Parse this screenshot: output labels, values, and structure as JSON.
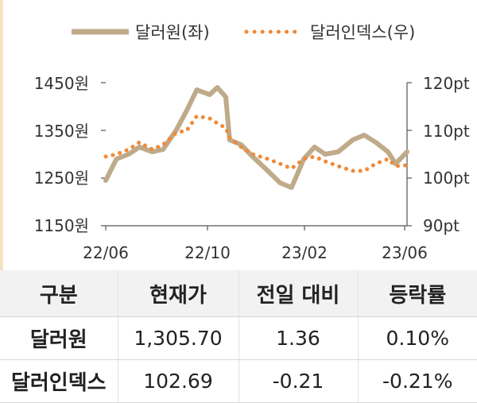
{
  "colors": {
    "krw": "#bfaa8a",
    "dxy": "#f08a38",
    "axis": "#555555",
    "accent": "#f6e3c4"
  },
  "chart_data": {
    "type": "line",
    "x_ticks": [
      "22/06",
      "22/10",
      "23/02",
      "23/06"
    ],
    "x_range": [
      "2022-06-01",
      "2023-06-30"
    ],
    "y_left": {
      "ticks": [
        "1450원",
        "1350원",
        "1250원",
        "1150원"
      ],
      "range": [
        1150,
        1450
      ]
    },
    "y_right": {
      "ticks": [
        "120pt",
        "110pt",
        "100pt",
        "90pt"
      ],
      "range": [
        90,
        120
      ]
    },
    "legend": {
      "placement": "top"
    },
    "series": [
      {
        "name": "달러원(좌)",
        "axis": "left",
        "style": "solid",
        "color": "#bfaa8a",
        "points": [
          [
            "2022-06-01",
            1245
          ],
          [
            "2022-06-15",
            1290
          ],
          [
            "2022-07-01",
            1300
          ],
          [
            "2022-07-15",
            1315
          ],
          [
            "2022-08-01",
            1305
          ],
          [
            "2022-08-15",
            1310
          ],
          [
            "2022-09-01",
            1350
          ],
          [
            "2022-09-15",
            1392
          ],
          [
            "2022-09-28",
            1435
          ],
          [
            "2022-10-15",
            1425
          ],
          [
            "2022-10-25",
            1440
          ],
          [
            "2022-11-05",
            1420
          ],
          [
            "2022-11-10",
            1330
          ],
          [
            "2022-11-25",
            1320
          ],
          [
            "2022-12-10",
            1295
          ],
          [
            "2022-12-30",
            1265
          ],
          [
            "2023-01-15",
            1240
          ],
          [
            "2023-01-30",
            1230
          ],
          [
            "2023-02-15",
            1290
          ],
          [
            "2023-03-01",
            1315
          ],
          [
            "2023-03-15",
            1300
          ],
          [
            "2023-04-01",
            1305
          ],
          [
            "2023-04-20",
            1330
          ],
          [
            "2023-05-05",
            1340
          ],
          [
            "2023-05-20",
            1325
          ],
          [
            "2023-06-05",
            1305
          ],
          [
            "2023-06-15",
            1280
          ],
          [
            "2023-06-30",
            1305
          ]
        ]
      },
      {
        "name": "달러인덱스(우)",
        "axis": "right",
        "style": "dotted",
        "color": "#f08a38",
        "points": [
          [
            "2022-06-01",
            104.5
          ],
          [
            "2022-06-15",
            105.0
          ],
          [
            "2022-07-01",
            106.0
          ],
          [
            "2022-07-15",
            107.5
          ],
          [
            "2022-08-01",
            106.0
          ],
          [
            "2022-08-15",
            107.0
          ],
          [
            "2022-09-01",
            109.5
          ],
          [
            "2022-09-15",
            110.0
          ],
          [
            "2022-09-28",
            113.0
          ],
          [
            "2022-10-15",
            112.5
          ],
          [
            "2022-10-25",
            111.5
          ],
          [
            "2022-11-05",
            110.5
          ],
          [
            "2022-11-10",
            108.5
          ],
          [
            "2022-11-25",
            106.5
          ],
          [
            "2022-12-10",
            105.0
          ],
          [
            "2022-12-30",
            104.0
          ],
          [
            "2023-01-15",
            103.0
          ],
          [
            "2023-01-30",
            102.0
          ],
          [
            "2023-02-15",
            104.0
          ],
          [
            "2023-03-01",
            104.5
          ],
          [
            "2023-03-15",
            103.5
          ],
          [
            "2023-04-01",
            102.5
          ],
          [
            "2023-04-20",
            101.5
          ],
          [
            "2023-05-05",
            101.5
          ],
          [
            "2023-05-20",
            103.0
          ],
          [
            "2023-06-05",
            104.0
          ],
          [
            "2023-06-15",
            102.5
          ],
          [
            "2023-06-30",
            102.7
          ]
        ]
      }
    ]
  },
  "table": {
    "headers": [
      "구분",
      "현재가",
      "전일 대비",
      "등락률"
    ],
    "rows": [
      {
        "name": "달러원",
        "price": "1,305.70",
        "change": "1.36",
        "rate": "0.10%"
      },
      {
        "name": "달러인덱스",
        "price": "102.69",
        "change": "-0.21",
        "rate": "-0.21%"
      }
    ]
  }
}
